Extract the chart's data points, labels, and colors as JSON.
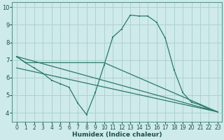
{
  "xlabel": "Humidex (Indice chaleur)",
  "background_color": "#ceeaea",
  "line_color": "#2a7a6a",
  "grid_color": "#aacece",
  "xlim": [
    -0.5,
    23.5
  ],
  "ylim": [
    3.5,
    10.3
  ],
  "yticks": [
    4,
    5,
    6,
    7,
    8,
    9,
    10
  ],
  "xticks": [
    0,
    1,
    2,
    3,
    4,
    5,
    6,
    7,
    8,
    9,
    10,
    11,
    12,
    13,
    14,
    15,
    16,
    17,
    18,
    19,
    20,
    21,
    22,
    23
  ],
  "series": [
    [
      0,
      7.2
    ],
    [
      1,
      6.85
    ],
    [
      2,
      6.55
    ],
    [
      3,
      6.25
    ],
    [
      4,
      5.85
    ],
    [
      5,
      5.65
    ],
    [
      6,
      5.45
    ],
    [
      7,
      4.55
    ],
    [
      8,
      3.9
    ],
    [
      9,
      5.15
    ],
    [
      10,
      6.7
    ],
    [
      11,
      8.3
    ],
    [
      12,
      8.75
    ],
    [
      13,
      9.55
    ],
    [
      14,
      9.5
    ],
    [
      15,
      9.5
    ],
    [
      16,
      9.15
    ],
    [
      17,
      8.25
    ],
    [
      18,
      6.45
    ],
    [
      19,
      5.15
    ],
    [
      20,
      4.6
    ],
    [
      21,
      4.45
    ],
    [
      22,
      4.2
    ],
    [
      23,
      4.05
    ]
  ],
  "series2": [
    [
      0,
      7.2
    ],
    [
      1,
      6.85
    ],
    [
      10,
      6.85
    ],
    [
      23,
      4.05
    ]
  ],
  "series3": [
    [
      0,
      7.2
    ],
    [
      23,
      4.05
    ]
  ],
  "series4": [
    [
      0,
      6.55
    ],
    [
      23,
      4.05
    ]
  ]
}
